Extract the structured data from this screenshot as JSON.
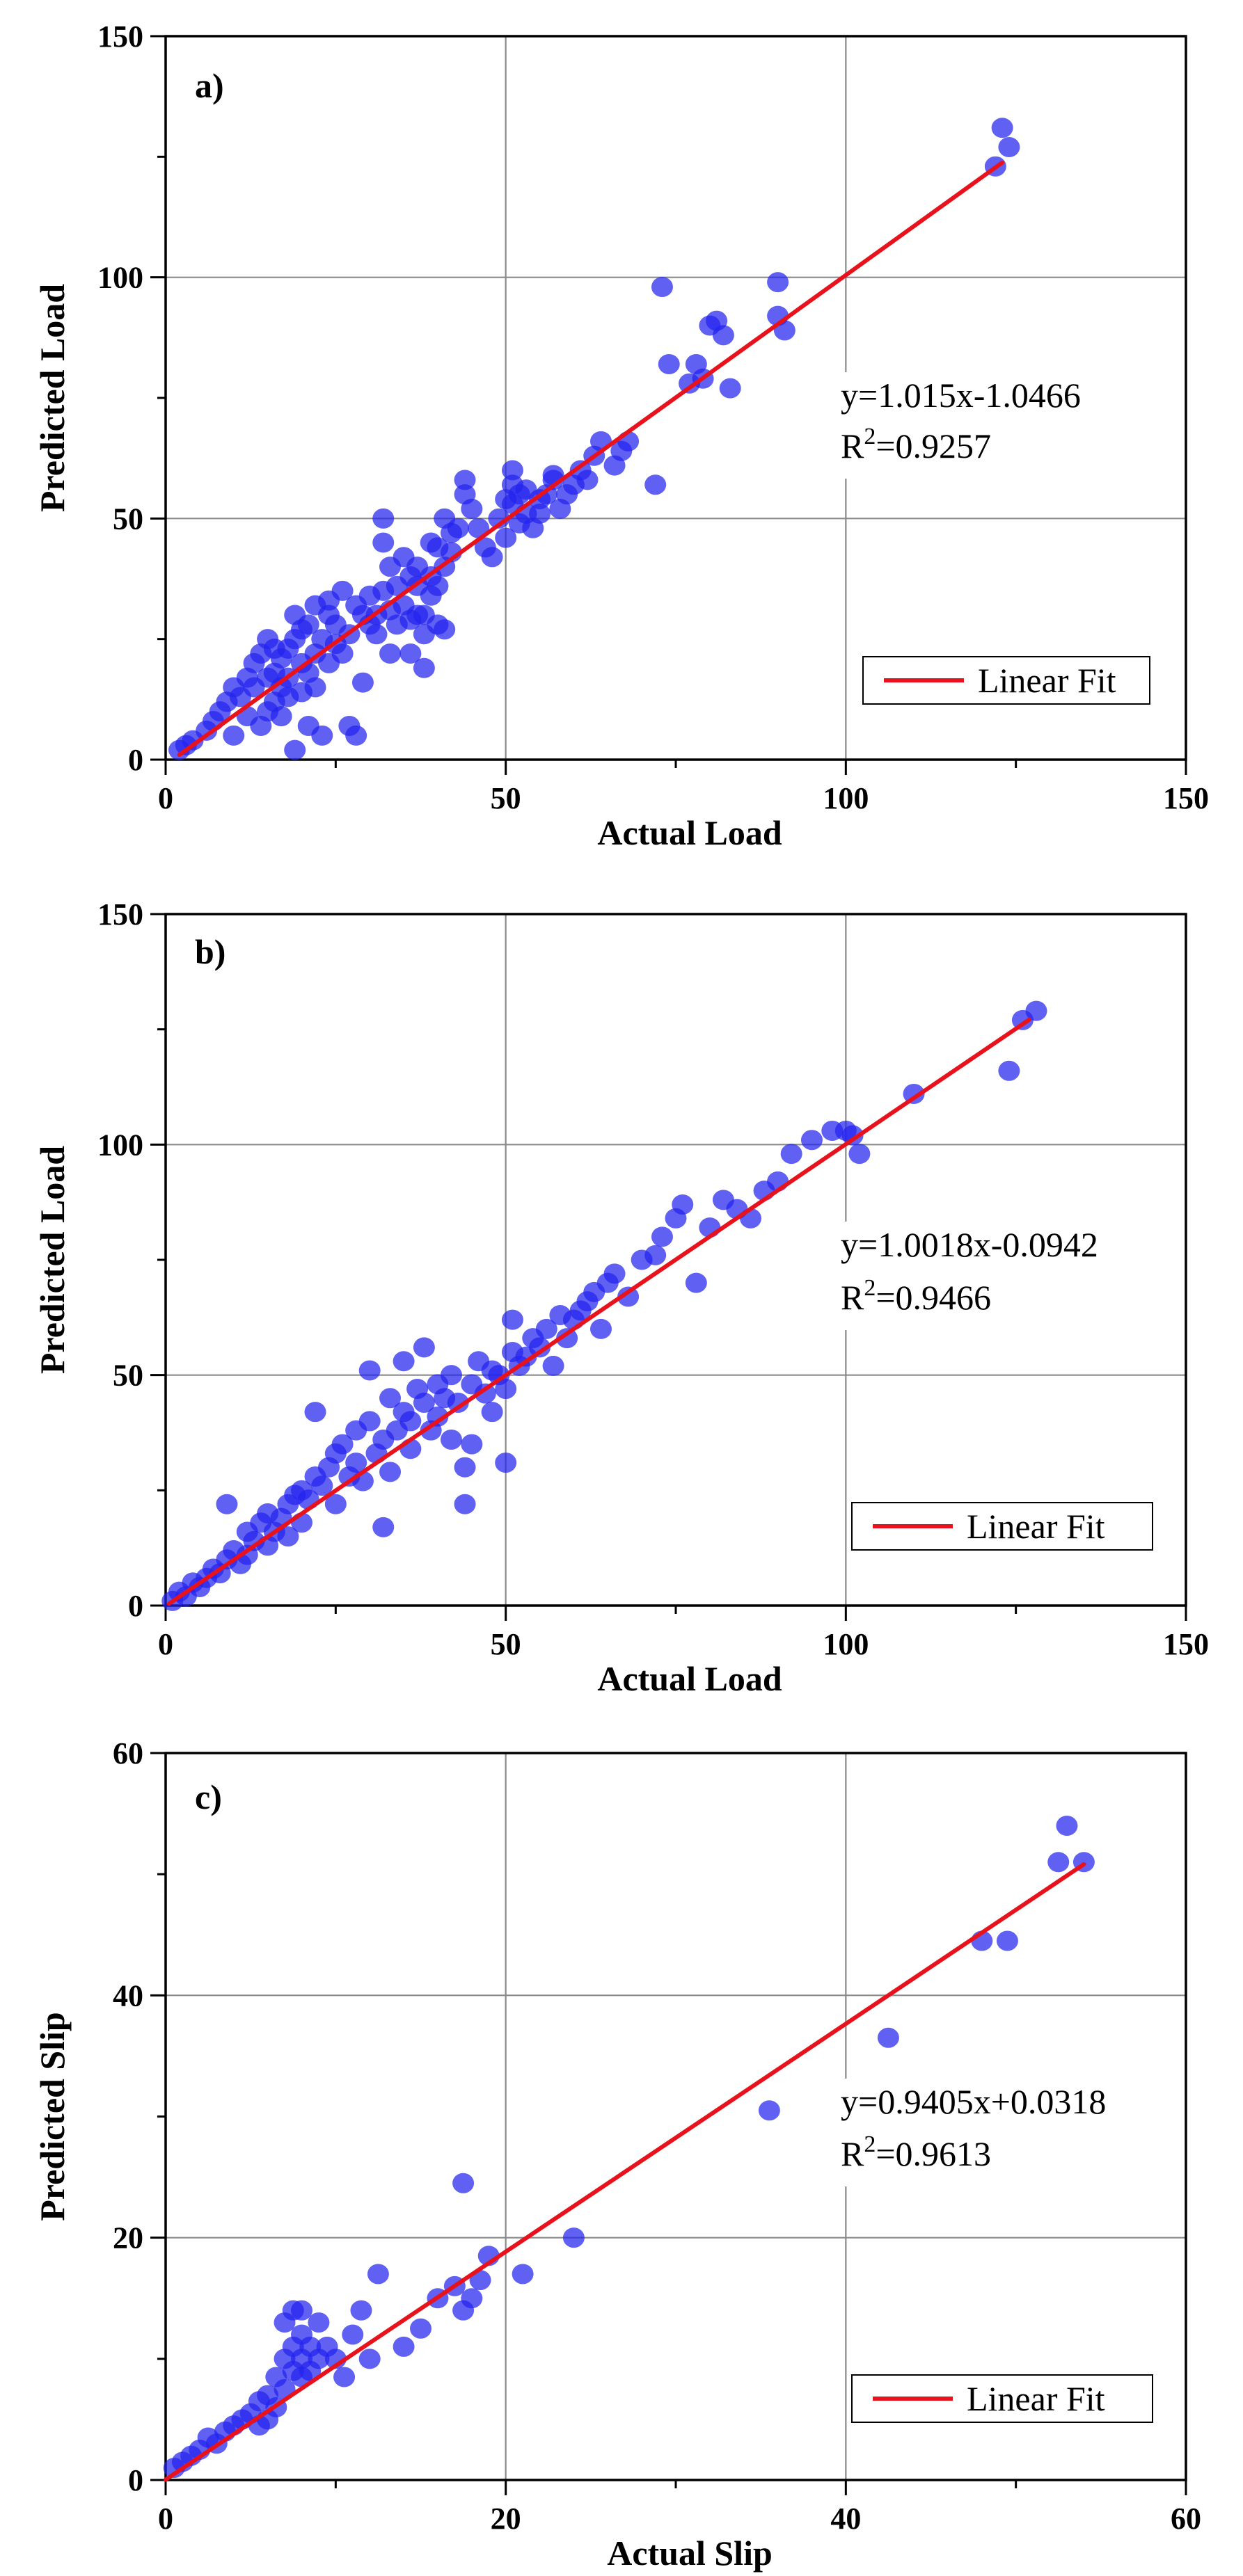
{
  "chart_data": [
    {
      "type": "scatter",
      "panel_label": "a)",
      "xlabel": "Actual Load",
      "ylabel": "Predicted Load",
      "xlim": [
        0,
        150
      ],
      "ylim": [
        0,
        150
      ],
      "xticks": [
        0,
        50,
        100,
        150
      ],
      "yticks": [
        0,
        50,
        100,
        150
      ],
      "grid": true,
      "fit": {
        "label": "Linear Fit",
        "slope": 1.015,
        "intercept": -1.0466,
        "x_range": [
          2,
          123
        ],
        "color": "#e8121c"
      },
      "equation": "y=1.015x-1.0466",
      "r2_prefix": "R",
      "r2_sup": "2",
      "r2_value": "=0.9257",
      "legend_position": "lower-right",
      "point_color": "#2323ee",
      "series": [
        {
          "name": "data",
          "x": [
            2,
            3,
            4,
            6,
            7,
            8,
            9,
            10,
            10,
            11,
            12,
            12,
            13,
            13,
            14,
            14,
            15,
            15,
            15,
            16,
            16,
            16,
            17,
            17,
            17,
            18,
            18,
            18,
            19,
            19,
            19,
            20,
            20,
            20,
            21,
            21,
            21,
            22,
            22,
            22,
            23,
            23,
            24,
            24,
            24,
            25,
            25,
            26,
            26,
            27,
            27,
            28,
            28,
            29,
            29,
            30,
            30,
            31,
            31,
            32,
            32,
            32,
            33,
            33,
            33,
            34,
            34,
            35,
            35,
            36,
            36,
            36,
            37,
            37,
            37,
            38,
            38,
            38,
            39,
            39,
            39,
            40,
            40,
            40,
            41,
            41,
            41,
            42,
            42,
            43,
            44,
            44,
            45,
            46,
            47,
            48,
            49,
            50,
            50,
            51,
            51,
            51,
            52,
            52,
            53,
            53,
            54,
            55,
            55,
            56,
            57,
            57,
            58,
            59,
            60,
            61,
            62,
            63,
            64,
            66,
            67,
            68,
            72,
            73,
            74,
            77,
            78,
            79,
            80,
            81,
            82,
            83,
            90,
            90,
            91,
            122,
            123,
            124
          ],
          "y": [
            2,
            3,
            4,
            6,
            8,
            10,
            12,
            15,
            5,
            13,
            17,
            9,
            20,
            15,
            22,
            7,
            25,
            17,
            10,
            23,
            18,
            12,
            21,
            15,
            9,
            23,
            17,
            13,
            25,
            30,
            2,
            27,
            20,
            14,
            28,
            18,
            7,
            32,
            22,
            15,
            25,
            5,
            30,
            20,
            33,
            28,
            24,
            22,
            35,
            26,
            7,
            32,
            5,
            30,
            16,
            28,
            34,
            30,
            26,
            35,
            50,
            45,
            40,
            31,
            22,
            36,
            28,
            42,
            32,
            38,
            29,
            22,
            40,
            36,
            30,
            30,
            26,
            19,
            45,
            38,
            34,
            44,
            36,
            28,
            50,
            40,
            27,
            47,
            43,
            48,
            55,
            58,
            52,
            48,
            44,
            42,
            50,
            54,
            46,
            60,
            57,
            53,
            55,
            49,
            51,
            56,
            48,
            51,
            54,
            55,
            58,
            59,
            52,
            55,
            57,
            60,
            58,
            63,
            66,
            61,
            64,
            66,
            57,
            98,
            82,
            78,
            82,
            79,
            90,
            91,
            88,
            77,
            99,
            92,
            89,
            123,
            131,
            127
          ]
        }
      ]
    },
    {
      "type": "scatter",
      "panel_label": "b)",
      "xlabel": "Actual Load",
      "ylabel": "Predicted Load",
      "xlim": [
        0,
        150
      ],
      "ylim": [
        0,
        150
      ],
      "xticks": [
        0,
        50,
        100,
        150
      ],
      "yticks": [
        0,
        50,
        100,
        150
      ],
      "grid": true,
      "fit": {
        "label": "Linear Fit",
        "slope": 1.0018,
        "intercept": -0.0942,
        "x_range": [
          0.5,
          127
        ],
        "color": "#e8121c"
      },
      "equation": "y=1.0018x-0.0942",
      "r2_prefix": "R",
      "r2_sup": "2",
      "r2_value": "=0.9466",
      "legend_position": "lower-right",
      "point_color": "#2323ee",
      "series": [
        {
          "name": "data",
          "x": [
            1,
            2,
            3,
            4,
            5,
            6,
            7,
            8,
            9,
            9,
            10,
            11,
            12,
            12,
            13,
            14,
            15,
            15,
            16,
            17,
            18,
            18,
            19,
            20,
            20,
            21,
            22,
            22,
            23,
            24,
            25,
            25,
            26,
            27,
            28,
            28,
            29,
            30,
            30,
            31,
            32,
            32,
            33,
            33,
            34,
            35,
            35,
            36,
            36,
            37,
            38,
            38,
            39,
            40,
            40,
            41,
            42,
            42,
            43,
            44,
            44,
            45,
            45,
            46,
            47,
            48,
            48,
            49,
            50,
            50,
            51,
            51,
            52,
            53,
            54,
            55,
            56,
            57,
            58,
            59,
            60,
            61,
            62,
            63,
            64,
            65,
            66,
            68,
            70,
            72,
            73,
            75,
            76,
            78,
            80,
            82,
            84,
            86,
            88,
            90,
            92,
            95,
            98,
            100,
            101,
            102,
            110,
            124,
            126,
            128
          ],
          "y": [
            1,
            3,
            2,
            5,
            4,
            6,
            8,
            7,
            10,
            22,
            12,
            9,
            16,
            11,
            14,
            18,
            13,
            20,
            16,
            19,
            22,
            15,
            24,
            25,
            18,
            23,
            42,
            28,
            26,
            30,
            22,
            33,
            35,
            28,
            31,
            38,
            27,
            40,
            51,
            33,
            36,
            17,
            45,
            29,
            38,
            42,
            53,
            40,
            34,
            47,
            44,
            56,
            38,
            41,
            48,
            45,
            50,
            36,
            44,
            30,
            22,
            48,
            35,
            53,
            46,
            42,
            51,
            50,
            47,
            31,
            62,
            55,
            52,
            54,
            58,
            56,
            60,
            52,
            63,
            58,
            62,
            64,
            66,
            68,
            60,
            70,
            72,
            67,
            75,
            76,
            80,
            84,
            87,
            70,
            82,
            88,
            86,
            84,
            90,
            92,
            98,
            101,
            103,
            103,
            102,
            98,
            111,
            116,
            127,
            129
          ]
        }
      ]
    },
    {
      "type": "scatter",
      "panel_label": "c)",
      "xlabel": "Actual Slip",
      "ylabel": "Predicted Slip",
      "xlim": [
        0,
        60
      ],
      "ylim": [
        0,
        60
      ],
      "xticks": [
        0,
        20,
        40,
        60
      ],
      "yticks": [
        0,
        20,
        40,
        60
      ],
      "grid": true,
      "fit": {
        "label": "Linear Fit",
        "slope": 0.9405,
        "intercept": 0.0318,
        "x_range": [
          0,
          54
        ],
        "color": "#e8121c"
      },
      "equation": "y=0.9405x+0.0318",
      "r2_prefix": "R",
      "r2_sup": "2",
      "r2_value": "=0.9613",
      "legend_position": "lower-right",
      "point_color": "#2323ee",
      "series": [
        {
          "name": "data",
          "x": [
            0.5,
            1,
            1.5,
            2,
            2.5,
            3,
            3.5,
            4,
            4.5,
            5,
            5.5,
            5.5,
            6,
            6,
            6.5,
            6.5,
            7,
            7,
            7,
            7.5,
            7.5,
            7.5,
            8,
            8,
            8,
            8,
            8.5,
            8.5,
            9,
            9,
            9.5,
            10,
            10.5,
            11,
            11.5,
            12,
            12.5,
            14,
            15,
            16,
            17,
            17.5,
            17.5,
            18,
            18.5,
            19,
            21,
            24,
            35.5,
            42.5,
            48,
            49.5,
            52.5,
            53,
            54
          ],
          "y": [
            1,
            1.5,
            2,
            2.5,
            3.5,
            3,
            4,
            4.5,
            5,
            5.5,
            4.5,
            6.5,
            7,
            5,
            8.5,
            6,
            10,
            7.5,
            13,
            11,
            9,
            14,
            12,
            8.5,
            10,
            14,
            11,
            9,
            13,
            10,
            11,
            10,
            8.5,
            12,
            14,
            10,
            17,
            11,
            12.5,
            15,
            16,
            14,
            24.5,
            15,
            16.5,
            18.5,
            17,
            20,
            30.5,
            36.5,
            44.5,
            44.5,
            51,
            54,
            51
          ]
        }
      ]
    }
  ]
}
